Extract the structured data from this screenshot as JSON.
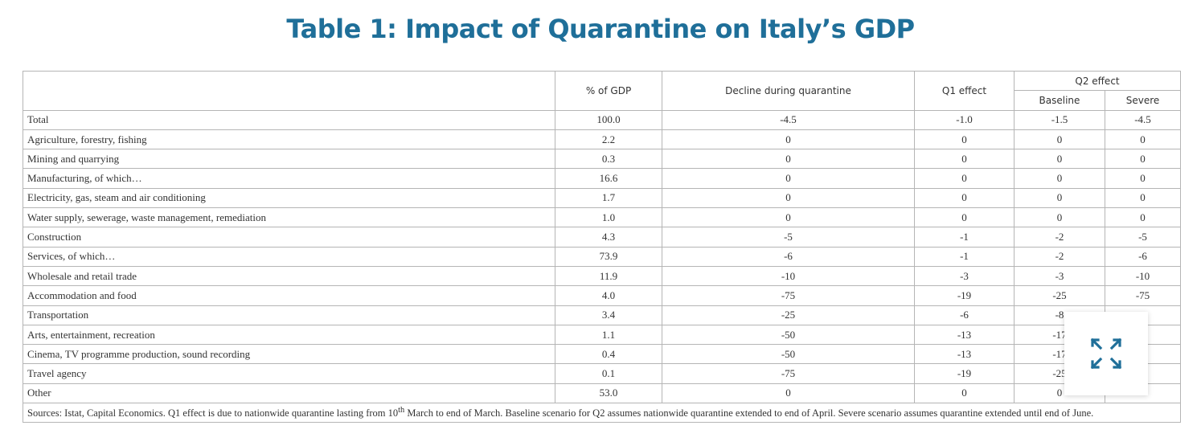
{
  "title": "Table 1: Impact of Quarantine on Italy’s GDP",
  "table": {
    "headers": {
      "sector": "",
      "pct_gdp": "% of GDP",
      "decline": "Decline during quarantine",
      "q1": "Q1 effect",
      "q2": "Q2 effect",
      "baseline": "Baseline",
      "severe": "Severe"
    },
    "rows": [
      {
        "sector": "Total",
        "pct_gdp": "100.0",
        "decline": "-4.5",
        "q1": "-1.0",
        "baseline": "-1.5",
        "severe": "-4.5"
      },
      {
        "sector": "Agriculture, forestry, fishing",
        "pct_gdp": "2.2",
        "decline": "0",
        "q1": "0",
        "baseline": "0",
        "severe": "0"
      },
      {
        "sector": "Mining and quarrying",
        "pct_gdp": "0.3",
        "decline": "0",
        "q1": "0",
        "baseline": "0",
        "severe": "0"
      },
      {
        "sector": "Manufacturing, of which…",
        "pct_gdp": "16.6",
        "decline": "0",
        "q1": "0",
        "baseline": "0",
        "severe": "0"
      },
      {
        "sector": "Electricity, gas, steam and air conditioning",
        "pct_gdp": "1.7",
        "decline": "0",
        "q1": "0",
        "baseline": "0",
        "severe": "0"
      },
      {
        "sector": "Water supply, sewerage, waste management, remediation",
        "pct_gdp": "1.0",
        "decline": "0",
        "q1": "0",
        "baseline": "0",
        "severe": "0"
      },
      {
        "sector": "Construction",
        "pct_gdp": "4.3",
        "decline": "-5",
        "q1": "-1",
        "baseline": "-2",
        "severe": "-5"
      },
      {
        "sector": "Services, of which…",
        "pct_gdp": "73.9",
        "decline": "-6",
        "q1": "-1",
        "baseline": "-2",
        "severe": "-6"
      },
      {
        "sector": "Wholesale and retail trade",
        "pct_gdp": "11.9",
        "decline": "-10",
        "q1": "-3",
        "baseline": "-3",
        "severe": "-10"
      },
      {
        "sector": "Accommodation and food",
        "pct_gdp": "4.0",
        "decline": "-75",
        "q1": "-19",
        "baseline": "-25",
        "severe": "-75"
      },
      {
        "sector": "Transportation",
        "pct_gdp": "3.4",
        "decline": "-25",
        "q1": "-6",
        "baseline": "-8",
        "severe": ""
      },
      {
        "sector": "Arts, entertainment, recreation",
        "pct_gdp": "1.1",
        "decline": "-50",
        "q1": "-13",
        "baseline": "-17",
        "severe": ""
      },
      {
        "sector": "Cinema, TV programme production, sound recording",
        "pct_gdp": "0.4",
        "decline": "-50",
        "q1": "-13",
        "baseline": "-17",
        "severe": ""
      },
      {
        "sector": "Travel agency",
        "pct_gdp": "0.1",
        "decline": "-75",
        "q1": "-19",
        "baseline": "-25",
        "severe": ""
      },
      {
        "sector": "Other",
        "pct_gdp": "53.0",
        "decline": "0",
        "q1": "0",
        "baseline": "0",
        "severe": ""
      }
    ],
    "note": {
      "before_sup": "Sources: Istat, Capital Economics. Q1 effect is due to nationwide quarantine lasting from 10",
      "sup": "th",
      "after_sup": " March to end of March. Baseline scenario for Q2 assumes nationwide quarantine extended to end of April. Severe scenario assumes quarantine extended until end of June."
    }
  },
  "expand_button": {
    "icon": "expand-arrows-icon",
    "color": "#1f6f99"
  },
  "colors": {
    "title": "#1f6f99",
    "border": "#b5b5b5",
    "text": "#333333"
  }
}
